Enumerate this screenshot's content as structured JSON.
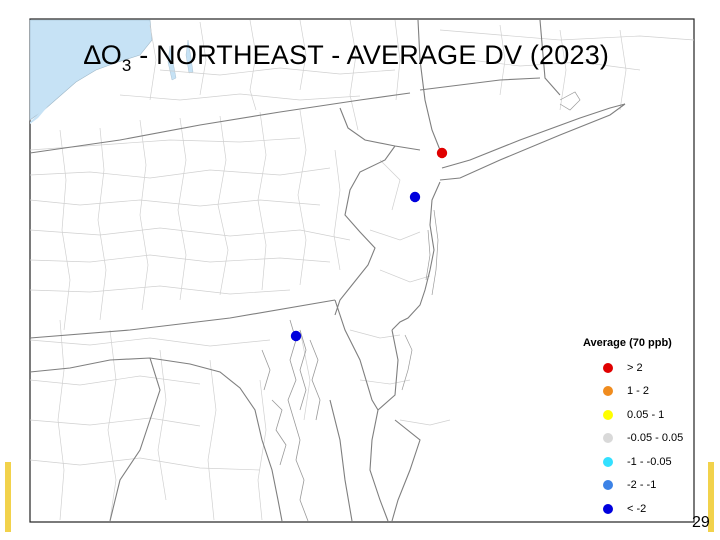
{
  "title": {
    "prefix": "∆O",
    "subscript": "3",
    "rest": " - NORTHEAST - AVERAGE DV (2023)"
  },
  "legend": {
    "title": "Average (70 ppb)",
    "items": [
      {
        "label": "> 2",
        "color": "#e00000"
      },
      {
        "label": "1 - 2",
        "color": "#f08c1e"
      },
      {
        "label": "0.05 - 1",
        "color": "#ffff00"
      },
      {
        "label": "-0.05 - 0.05",
        "color": "#d9d9d9"
      },
      {
        "label": "-1 - -0.05",
        "color": "#33e0ff"
      },
      {
        "label": "-2 - -1",
        "color": "#3c82e6"
      },
      {
        "label": "< -2",
        "color": "#0000dd"
      }
    ]
  },
  "monitors": [
    {
      "id": "monitor-nyc",
      "category": "> 2",
      "color": "#e00000"
    },
    {
      "id": "monitor-nj",
      "category": "< -2",
      "color": "#0000dd"
    },
    {
      "id": "monitor-md",
      "category": "< -2",
      "color": "#0000dd"
    }
  ],
  "page_number": "29",
  "colors": {
    "water": "#c6e2f5",
    "county_border": "#d0d0d0",
    "state_border": "#7f7f7f",
    "accent_bar": "#f2d24b"
  }
}
